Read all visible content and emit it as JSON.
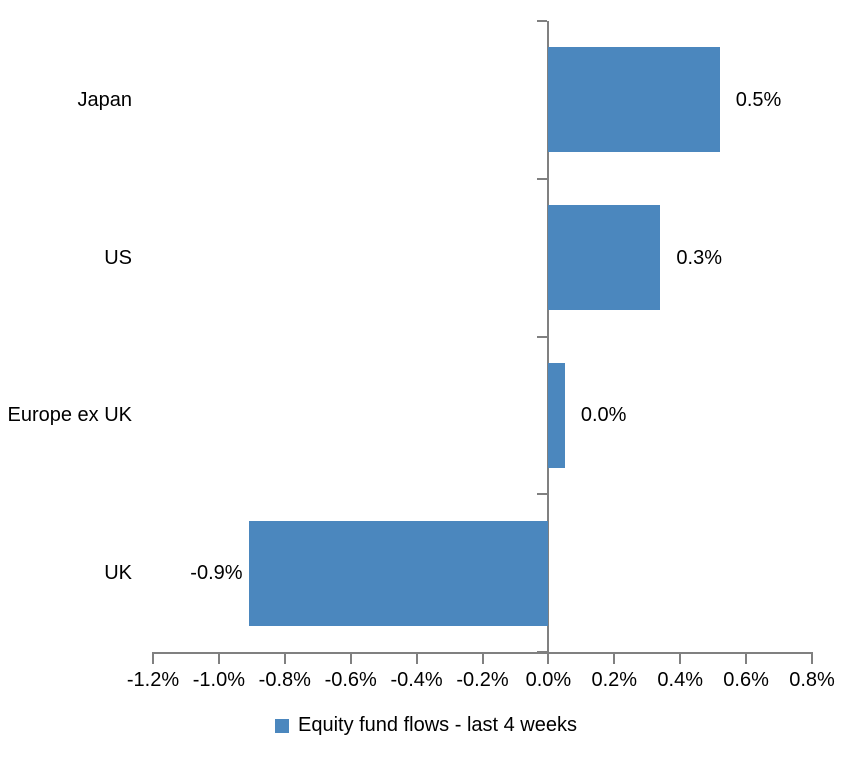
{
  "chart_data": {
    "type": "bar",
    "orientation": "horizontal",
    "title": "",
    "xlabel": "",
    "ylabel": "",
    "categories": [
      "Japan",
      "US",
      "Europe ex UK",
      "UK"
    ],
    "values": [
      0.52,
      0.34,
      0.05,
      -0.91
    ],
    "value_labels": [
      "0.5%",
      "0.3%",
      "0.0%",
      "-0.9%"
    ],
    "legend": "Equity fund flows - last 4 weeks",
    "legend_position": "bottom",
    "x_ticks": [
      "-1.2%",
      "-1.0%",
      "-0.8%",
      "-0.6%",
      "-0.4%",
      "-0.2%",
      "0.0%",
      "0.2%",
      "0.4%",
      "0.6%",
      "0.8%"
    ],
    "x_tick_values": [
      -1.2,
      -1.0,
      -0.8,
      -0.6,
      -0.4,
      -0.2,
      0.0,
      0.2,
      0.4,
      0.6,
      0.8
    ],
    "xlim": [
      -1.2,
      0.8
    ],
    "grid": false,
    "colors": {
      "bar": "#4B87BE",
      "axis": "#808080",
      "text": "#000000",
      "background": "#FFFFFF"
    }
  }
}
